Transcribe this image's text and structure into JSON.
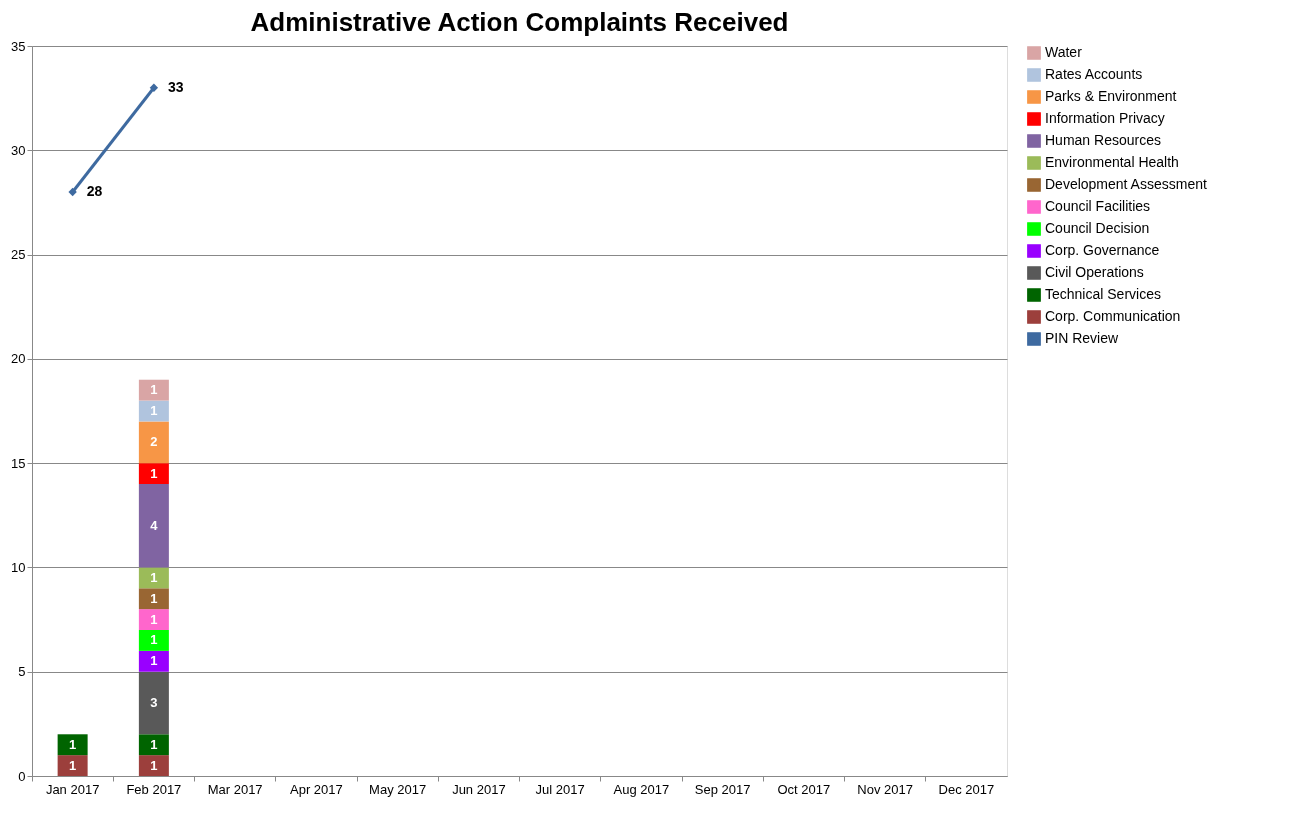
{
  "chart_data": {
    "type": "bar",
    "title": "Administrative Action Complaints Received",
    "stacked": true,
    "data_labels": true,
    "grid": "y",
    "legend": "right",
    "categories": [
      "Jan 2017",
      "Feb 2017",
      "Mar 2017",
      "Apr 2017",
      "May 2017",
      "Jun 2017",
      "Jul 2017",
      "Aug 2017",
      "Sep 2017",
      "Oct 2017",
      "Nov 2017",
      "Dec 2017"
    ],
    "ylim": [
      0,
      35
    ],
    "yticks": [
      0,
      5,
      10,
      15,
      20,
      25,
      30,
      35
    ],
    "series": [
      {
        "name": "Corp. Communication",
        "color": "#9c3f3c",
        "values": [
          1,
          1,
          null,
          null,
          null,
          null,
          null,
          null,
          null,
          null,
          null,
          null
        ]
      },
      {
        "name": "Technical Services",
        "color": "#006400",
        "values": [
          1,
          1,
          null,
          null,
          null,
          null,
          null,
          null,
          null,
          null,
          null,
          null
        ]
      },
      {
        "name": "Civil Operations",
        "color": "#595959",
        "values": [
          null,
          3,
          null,
          null,
          null,
          null,
          null,
          null,
          null,
          null,
          null,
          null
        ]
      },
      {
        "name": "Corp. Governance",
        "color": "#9900ff",
        "values": [
          null,
          1,
          null,
          null,
          null,
          null,
          null,
          null,
          null,
          null,
          null,
          null
        ]
      },
      {
        "name": "Council Decision",
        "color": "#00ff00",
        "values": [
          null,
          1,
          null,
          null,
          null,
          null,
          null,
          null,
          null,
          null,
          null,
          null
        ]
      },
      {
        "name": "Council Facilities",
        "color": "#ff66cc",
        "values": [
          null,
          1,
          null,
          null,
          null,
          null,
          null,
          null,
          null,
          null,
          null,
          null
        ]
      },
      {
        "name": "Development Assessment",
        "color": "#996633",
        "values": [
          null,
          1,
          null,
          null,
          null,
          null,
          null,
          null,
          null,
          null,
          null,
          null
        ]
      },
      {
        "name": "Environmental Health",
        "color": "#9bbb59",
        "values": [
          null,
          1,
          null,
          null,
          null,
          null,
          null,
          null,
          null,
          null,
          null,
          null
        ]
      },
      {
        "name": "Human Resources",
        "color": "#8064a2",
        "values": [
          null,
          4,
          null,
          null,
          null,
          null,
          null,
          null,
          null,
          null,
          null,
          null
        ]
      },
      {
        "name": "Information Privacy",
        "color": "#ff0000",
        "values": [
          null,
          1,
          null,
          null,
          null,
          null,
          null,
          null,
          null,
          null,
          null,
          null
        ]
      },
      {
        "name": "Parks & Environment",
        "color": "#f79646",
        "values": [
          null,
          2,
          null,
          null,
          null,
          null,
          null,
          null,
          null,
          null,
          null,
          null
        ]
      },
      {
        "name": "Rates Accounts",
        "color": "#b0c4de",
        "values": [
          null,
          1,
          null,
          null,
          null,
          null,
          null,
          null,
          null,
          null,
          null,
          null
        ]
      },
      {
        "name": "Water",
        "color": "#d9a5a5",
        "values": [
          null,
          1,
          null,
          null,
          null,
          null,
          null,
          null,
          null,
          null,
          null,
          null
        ]
      },
      {
        "name": "PIN Review",
        "type": "line",
        "marker": "diamond",
        "color": "#3e6aa0",
        "values": [
          28,
          33,
          null,
          null,
          null,
          null,
          null,
          null,
          null,
          null,
          null,
          null
        ]
      }
    ]
  }
}
